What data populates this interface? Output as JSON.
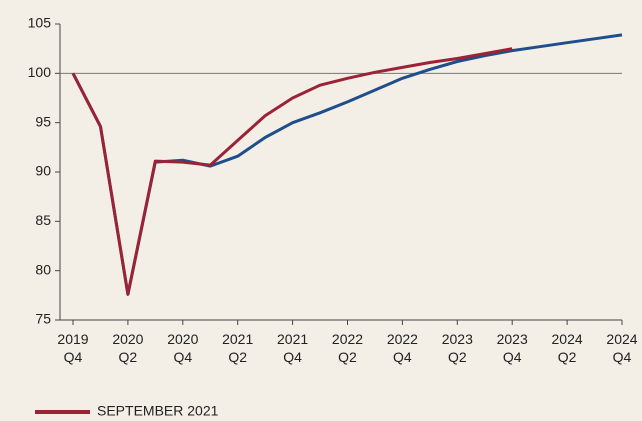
{
  "chart_data": {
    "type": "line",
    "categories": [
      "2019\nQ4",
      null,
      "2020\nQ2",
      null,
      "2020\nQ4",
      null,
      "2021\nQ2",
      null,
      "2021\nQ4",
      null,
      "2022\nQ2",
      null,
      "2022\nQ4",
      null,
      "2023\nQ2",
      null,
      "2023\nQ4",
      null,
      "2024\nQ2",
      null,
      "2024\nQ4"
    ],
    "series": [
      {
        "name": "SEPTEMBER 2021",
        "color": "#9b2335",
        "values": [
          100,
          94.6,
          77.6,
          91.1,
          91.0,
          90.7,
          93.2,
          95.7,
          97.5,
          98.8,
          99.5,
          100.1,
          100.6,
          101.1,
          101.5,
          102.0,
          102.5,
          null,
          null,
          null,
          null
        ]
      },
      {
        "color": "#1f4e8c",
        "values": [
          100,
          94.6,
          77.6,
          91.0,
          91.2,
          90.6,
          91.6,
          93.5,
          95.0,
          96.0,
          97.1,
          98.3,
          99.5,
          100.4,
          101.2,
          101.8,
          102.3,
          102.7,
          103.1,
          103.5,
          103.9
        ]
      }
    ],
    "reference_line": 100,
    "ylim": [
      75,
      105
    ],
    "yticks": [
      75,
      80,
      85,
      90,
      95,
      100,
      105
    ],
    "grid": false
  }
}
